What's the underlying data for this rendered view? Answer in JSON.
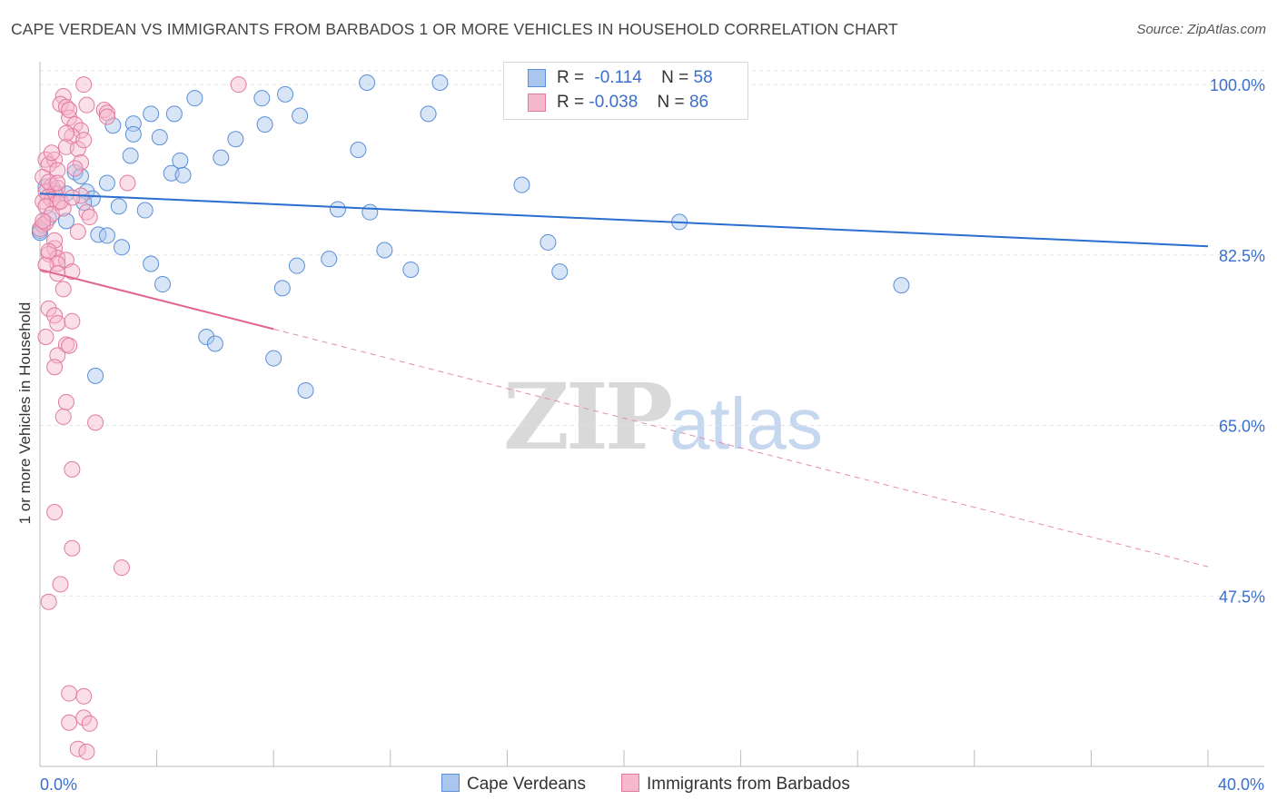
{
  "title": "CAPE VERDEAN VS IMMIGRANTS FROM BARBADOS 1 OR MORE VEHICLES IN HOUSEHOLD CORRELATION CHART",
  "source": "Source: ZipAtlas.com",
  "watermark": {
    "zip": "ZIP",
    "atlas": "atlas"
  },
  "legend": {
    "rows": [
      {
        "r_label": "R =",
        "r_value": "-0.114",
        "n_label": "N =",
        "n_value": "58",
        "color": "#a9c6ee",
        "border": "#5b8fd6"
      },
      {
        "r_label": "R =",
        "r_value": "-0.038",
        "n_label": "N =",
        "n_value": "86",
        "color": "#f6b8cc",
        "border": "#e17aa0"
      }
    ]
  },
  "bottom_legend": [
    {
      "label": "Cape Verdeans",
      "color": "#a9c6ee",
      "border": "#5b8fd6"
    },
    {
      "label": "Immigrants from Barbados",
      "color": "#f6b8cc",
      "border": "#e17aa0"
    }
  ],
  "chart_data": {
    "type": "scatter",
    "title": "CAPE VERDEAN VS IMMIGRANTS FROM BARBADOS 1 OR MORE VEHICLES IN HOUSEHOLD CORRELATION CHART",
    "xlabel": "",
    "ylabel": "1 or more Vehicles in Household",
    "xlim": [
      0,
      40
    ],
    "ylim": [
      30,
      101.6
    ],
    "x_tick_labels": [
      "0.0%",
      "40.0%"
    ],
    "y_ticks": [
      100.0,
      82.5,
      65.0,
      47.5
    ],
    "y_tick_labels": [
      "100.0%",
      "82.5%",
      "65.0%",
      "47.5%"
    ],
    "grid": true,
    "legend_position": "top-center",
    "series": [
      {
        "name": "Cape Verdeans",
        "color": "#5b8fd6",
        "fill": "#a9c6ee",
        "trend": {
          "x": [
            0,
            40
          ],
          "y": [
            88.8,
            83.4
          ],
          "style": "solid"
        },
        "points": [
          {
            "x": 11.2,
            "y": 100.2
          },
          {
            "x": 13.7,
            "y": 100.2
          },
          {
            "x": 5.3,
            "y": 98.6
          },
          {
            "x": 7.6,
            "y": 98.6
          },
          {
            "x": 8.4,
            "y": 99.0
          },
          {
            "x": 3.8,
            "y": 97.0
          },
          {
            "x": 4.6,
            "y": 97.0
          },
          {
            "x": 8.9,
            "y": 96.8
          },
          {
            "x": 13.3,
            "y": 97.0
          },
          {
            "x": 2.5,
            "y": 95.8
          },
          {
            "x": 3.2,
            "y": 96.0
          },
          {
            "x": 7.7,
            "y": 95.9
          },
          {
            "x": 3.2,
            "y": 94.9
          },
          {
            "x": 4.1,
            "y": 94.6
          },
          {
            "x": 6.7,
            "y": 94.4
          },
          {
            "x": 10.9,
            "y": 93.3
          },
          {
            "x": 3.1,
            "y": 92.7
          },
          {
            "x": 6.2,
            "y": 92.5
          },
          {
            "x": 4.8,
            "y": 92.2
          },
          {
            "x": 1.2,
            "y": 91.0
          },
          {
            "x": 4.5,
            "y": 90.9
          },
          {
            "x": 4.9,
            "y": 90.7
          },
          {
            "x": 1.4,
            "y": 90.6
          },
          {
            "x": 2.3,
            "y": 89.9
          },
          {
            "x": 16.5,
            "y": 89.7
          },
          {
            "x": 0.2,
            "y": 89.5
          },
          {
            "x": 0.5,
            "y": 89.1
          },
          {
            "x": 1.6,
            "y": 89.0
          },
          {
            "x": 0.9,
            "y": 88.8
          },
          {
            "x": 1.8,
            "y": 88.3
          },
          {
            "x": 1.5,
            "y": 87.9
          },
          {
            "x": 2.7,
            "y": 87.5
          },
          {
            "x": 3.6,
            "y": 87.1
          },
          {
            "x": 10.2,
            "y": 87.2
          },
          {
            "x": 11.3,
            "y": 86.9
          },
          {
            "x": 0.9,
            "y": 86.0
          },
          {
            "x": 21.9,
            "y": 85.9
          },
          {
            "x": 0.0,
            "y": 85.0
          },
          {
            "x": 2.0,
            "y": 84.6
          },
          {
            "x": 2.3,
            "y": 84.5
          },
          {
            "x": 17.4,
            "y": 83.8
          },
          {
            "x": 2.8,
            "y": 83.3
          },
          {
            "x": 11.8,
            "y": 83.0
          },
          {
            "x": 9.9,
            "y": 82.1
          },
          {
            "x": 3.8,
            "y": 81.6
          },
          {
            "x": 8.8,
            "y": 81.4
          },
          {
            "x": 12.7,
            "y": 81.0
          },
          {
            "x": 17.8,
            "y": 80.8
          },
          {
            "x": 4.2,
            "y": 79.5
          },
          {
            "x": 8.3,
            "y": 79.1
          },
          {
            "x": 29.5,
            "y": 79.4
          },
          {
            "x": 5.7,
            "y": 74.1
          },
          {
            "x": 6.0,
            "y": 73.4
          },
          {
            "x": 8.0,
            "y": 71.9
          },
          {
            "x": 1.9,
            "y": 70.1
          },
          {
            "x": 9.1,
            "y": 68.6
          },
          {
            "x": 0.0,
            "y": 84.8
          },
          {
            "x": 0.3,
            "y": 86.3
          }
        ]
      },
      {
        "name": "Immigrants from Barbados",
        "color": "#e17aa0",
        "fill": "#f6b8cc",
        "trend": {
          "x": [
            0,
            8.0,
            40
          ],
          "y": [
            81.0,
            74.9,
            50.5
          ],
          "style": "solid-then-dashed"
        },
        "points": [
          {
            "x": 1.5,
            "y": 100.0
          },
          {
            "x": 6.8,
            "y": 100.0
          },
          {
            "x": 0.8,
            "y": 98.8
          },
          {
            "x": 0.7,
            "y": 98.0
          },
          {
            "x": 0.9,
            "y": 97.7
          },
          {
            "x": 1.6,
            "y": 97.9
          },
          {
            "x": 2.2,
            "y": 97.4
          },
          {
            "x": 2.3,
            "y": 97.1
          },
          {
            "x": 1.0,
            "y": 96.6
          },
          {
            "x": 1.2,
            "y": 95.9
          },
          {
            "x": 1.4,
            "y": 95.3
          },
          {
            "x": 1.1,
            "y": 94.7
          },
          {
            "x": 0.9,
            "y": 93.6
          },
          {
            "x": 1.3,
            "y": 93.4
          },
          {
            "x": 0.2,
            "y": 92.3
          },
          {
            "x": 0.5,
            "y": 92.3
          },
          {
            "x": 0.3,
            "y": 91.8
          },
          {
            "x": 1.4,
            "y": 92.0
          },
          {
            "x": 0.6,
            "y": 91.2
          },
          {
            "x": 0.1,
            "y": 90.5
          },
          {
            "x": 3.0,
            "y": 89.9
          },
          {
            "x": 0.4,
            "y": 89.6
          },
          {
            "x": 0.6,
            "y": 89.4
          },
          {
            "x": 0.2,
            "y": 89.0
          },
          {
            "x": 0.5,
            "y": 88.8
          },
          {
            "x": 0.3,
            "y": 88.5
          },
          {
            "x": 0.4,
            "y": 88.2
          },
          {
            "x": 0.1,
            "y": 88.0
          },
          {
            "x": 0.6,
            "y": 87.9
          },
          {
            "x": 0.2,
            "y": 87.5
          },
          {
            "x": 1.6,
            "y": 86.9
          },
          {
            "x": 1.7,
            "y": 86.4
          },
          {
            "x": 0.1,
            "y": 85.6
          },
          {
            "x": 0.0,
            "y": 85.2
          },
          {
            "x": 1.3,
            "y": 84.9
          },
          {
            "x": 0.5,
            "y": 83.2
          },
          {
            "x": 0.3,
            "y": 82.6
          },
          {
            "x": 0.6,
            "y": 82.2
          },
          {
            "x": 0.9,
            "y": 82.0
          },
          {
            "x": 0.6,
            "y": 81.6
          },
          {
            "x": 0.2,
            "y": 81.5
          },
          {
            "x": 1.1,
            "y": 80.8
          },
          {
            "x": 0.6,
            "y": 80.6
          },
          {
            "x": 0.3,
            "y": 77.0
          },
          {
            "x": 0.5,
            "y": 76.3
          },
          {
            "x": 0.6,
            "y": 75.5
          },
          {
            "x": 1.1,
            "y": 75.7
          },
          {
            "x": 0.2,
            "y": 74.1
          },
          {
            "x": 0.9,
            "y": 73.3
          },
          {
            "x": 1.0,
            "y": 73.2
          },
          {
            "x": 0.6,
            "y": 72.2
          },
          {
            "x": 0.5,
            "y": 71.0
          },
          {
            "x": 0.9,
            "y": 67.4
          },
          {
            "x": 0.8,
            "y": 65.9
          },
          {
            "x": 1.9,
            "y": 65.3
          },
          {
            "x": 1.1,
            "y": 60.5
          },
          {
            "x": 0.5,
            "y": 56.1
          },
          {
            "x": 1.1,
            "y": 52.4
          },
          {
            "x": 2.8,
            "y": 50.4
          },
          {
            "x": 0.7,
            "y": 48.7
          },
          {
            "x": 0.3,
            "y": 46.9
          },
          {
            "x": 1.0,
            "y": 37.5
          },
          {
            "x": 1.5,
            "y": 37.2
          },
          {
            "x": 1.5,
            "y": 35.0
          },
          {
            "x": 1.0,
            "y": 34.5
          },
          {
            "x": 1.7,
            "y": 34.4
          },
          {
            "x": 1.3,
            "y": 31.8
          },
          {
            "x": 1.6,
            "y": 31.5
          },
          {
            "x": 0.2,
            "y": 85.8
          },
          {
            "x": 0.4,
            "y": 86.7
          },
          {
            "x": 0.8,
            "y": 87.3
          },
          {
            "x": 0.7,
            "y": 88.0
          },
          {
            "x": 0.3,
            "y": 90.0
          },
          {
            "x": 1.5,
            "y": 94.3
          },
          {
            "x": 0.9,
            "y": 95.0
          },
          {
            "x": 0.4,
            "y": 93.0
          },
          {
            "x": 1.2,
            "y": 91.4
          },
          {
            "x": 0.6,
            "y": 89.9
          },
          {
            "x": 2.3,
            "y": 96.7
          },
          {
            "x": 1.4,
            "y": 88.6
          },
          {
            "x": 0.1,
            "y": 86.0
          },
          {
            "x": 0.5,
            "y": 84.0
          },
          {
            "x": 0.8,
            "y": 79.0
          },
          {
            "x": 1.0,
            "y": 97.4
          },
          {
            "x": 1.1,
            "y": 88.4
          },
          {
            "x": 0.3,
            "y": 82.9
          }
        ]
      }
    ]
  }
}
